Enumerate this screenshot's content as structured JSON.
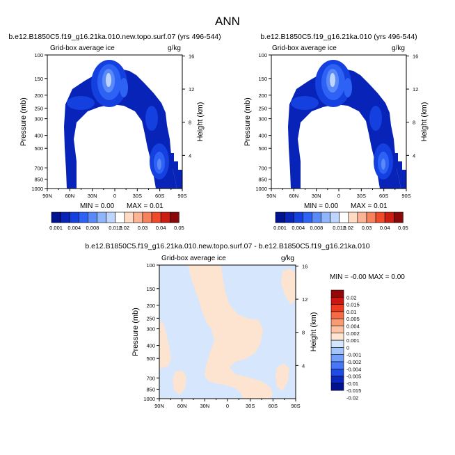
{
  "main_title": "ANN",
  "colors": {
    "abs_scale": [
      "#001290",
      "#0823B8",
      "#1440E0",
      "#2E62F5",
      "#5A8AFA",
      "#8FB5FC",
      "#BED6FF",
      "#FFFFFF",
      "#FFDBC4",
      "#FCB494",
      "#F8825C",
      "#F04A2A",
      "#CC1E10",
      "#8A0808"
    ],
    "diff_scale": [
      "#001290",
      "#0A28BE",
      "#1F4BE6",
      "#4677F6",
      "#729FFA",
      "#A4C4FD",
      "#D2E6FF",
      "#FFE6D2",
      "#FDC3A3",
      "#FA9A72",
      "#F66A45",
      "#EE3A1E",
      "#D01410",
      "#960808"
    ],
    "neg_fill": "#D6E6FC",
    "pos_fill": "#FDE4D0"
  },
  "chart_data": [
    {
      "type": "heatmap",
      "title": "b.e12.B1850C5.f19_g16.21ka.010.new.topo.surf.07 (yrs 496-544)",
      "left_label": "Grid-box average ice",
      "right_label": "g/kg",
      "ylabel": "Pressure (mb)",
      "ylabel_right": "Height (km)",
      "x_ticks": [
        "90N",
        "60N",
        "30N",
        "0",
        "30S",
        "60S",
        "90S"
      ],
      "y_ticks": [
        "100",
        "150",
        "200",
        "250",
        "300",
        "400",
        "500",
        "700",
        "850",
        "1000"
      ],
      "y_right_ticks": [
        "16",
        "12",
        "8",
        "4"
      ],
      "xlim": [
        90,
        -90
      ],
      "ylim": [
        1000,
        100
      ],
      "y_scale": "log",
      "min_label": "MIN =   0.00",
      "max_label": "MAX =   0.01",
      "colorbar_labels": [
        "0.001",
        "0.004",
        "0.008",
        "0.012",
        "0.02",
        "0.03",
        "0.04",
        "0.05"
      ],
      "contour_levels": [
        0.001,
        0.002,
        0.004,
        0.006,
        0.008,
        0.01,
        0.012,
        0.015,
        0.02,
        0.025,
        0.03,
        0.035,
        0.04,
        0.045,
        0.05
      ]
    },
    {
      "type": "heatmap",
      "title": "b.e12.B1850C5.f19_g16.21ka.010 (yrs 496-544)",
      "left_label": "Grid-box average ice",
      "right_label": "g/kg",
      "ylabel": "Pressure (mb)",
      "ylabel_right": "Height (km)",
      "x_ticks": [
        "90N",
        "60N",
        "30N",
        "0",
        "30S",
        "60S",
        "90S"
      ],
      "y_ticks": [
        "100",
        "150",
        "200",
        "250",
        "300",
        "400",
        "500",
        "700",
        "850",
        "1000"
      ],
      "y_right_ticks": [
        "16",
        "12",
        "8",
        "4"
      ],
      "xlim": [
        90,
        -90
      ],
      "ylim": [
        1000,
        100
      ],
      "y_scale": "log",
      "min_label": "MIN =   0.00",
      "max_label": "MAX =   0.01",
      "colorbar_labels": [
        "0.001",
        "0.004",
        "0.008",
        "0.012",
        "0.02",
        "0.03",
        "0.04",
        "0.05"
      ],
      "contour_levels": [
        0.001,
        0.002,
        0.004,
        0.006,
        0.008,
        0.01,
        0.012,
        0.015,
        0.02,
        0.025,
        0.03,
        0.035,
        0.04,
        0.045,
        0.05
      ]
    },
    {
      "type": "heatmap",
      "title": "b.e12.B1850C5.f19_g16.21ka.010.new.topo.surf.07 - b.e12.B1850C5.f19_g16.21ka.010",
      "left_label": "Grid-box average ice",
      "right_label": "g/kg",
      "ylabel": "Pressure (mb)",
      "ylabel_right": "Height (km)",
      "x_ticks": [
        "90N",
        "60N",
        "30N",
        "0",
        "30S",
        "60S",
        "90S"
      ],
      "y_ticks": [
        "100",
        "150",
        "200",
        "250",
        "300",
        "400",
        "500",
        "700",
        "850",
        "1000"
      ],
      "y_right_ticks": [
        "16",
        "12",
        "8",
        "4"
      ],
      "xlim": [
        90,
        -90
      ],
      "ylim": [
        1000,
        100
      ],
      "y_scale": "log",
      "minmax_label": "MIN = -0.00   MAX =   0.00",
      "colorbar_labels": [
        "0.02",
        "0.015",
        "0.01",
        "0.005",
        "0.004",
        "0.002",
        "0.001",
        "0",
        "-0.001",
        "-0.002",
        "-0.004",
        "-0.005",
        "-0.01",
        "-0.015",
        "-0.02"
      ]
    }
  ]
}
